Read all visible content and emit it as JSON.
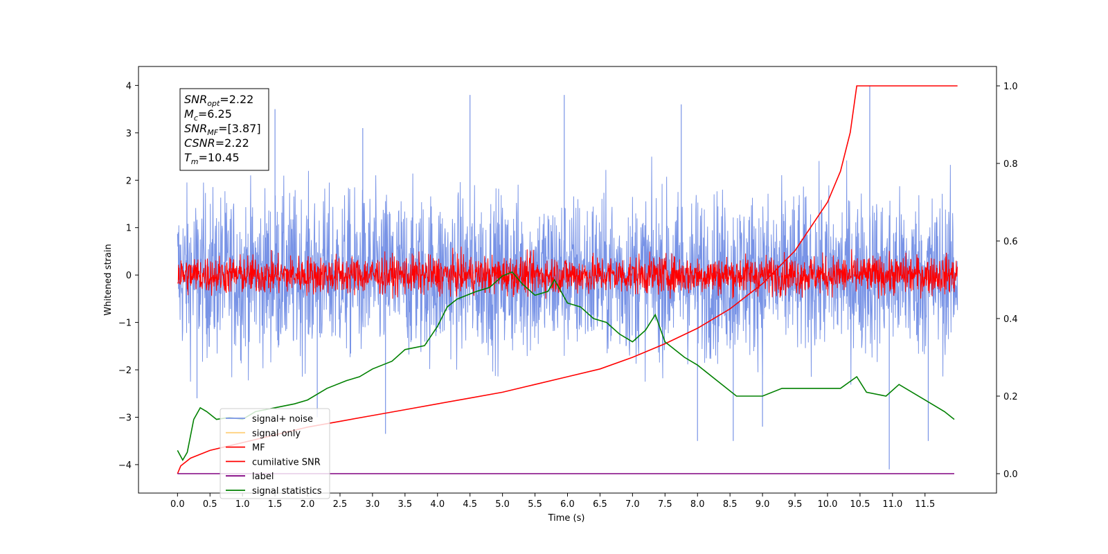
{
  "chart_data": {
    "type": "line",
    "xlabel": "Time (s)",
    "ylabel": "Whitened strain",
    "ylabel_right": "",
    "xlim": [
      -0.6,
      12.6
    ],
    "ylim": [
      -4.6,
      4.4
    ],
    "ylim_right": [
      -0.05,
      1.05
    ],
    "xticks": [
      0.0,
      0.5,
      1.0,
      1.5,
      2.0,
      2.5,
      3.0,
      3.5,
      4.0,
      4.5,
      5.0,
      5.5,
      6.0,
      6.5,
      7.0,
      7.5,
      8.0,
      8.5,
      9.0,
      9.5,
      10.0,
      10.5,
      11.0,
      11.5
    ],
    "xtick_labels": [
      "0.0",
      "0.5",
      "1.0",
      "1.5",
      "2.0",
      "2.5",
      "3.0",
      "3.5",
      "4.0",
      "4.5",
      "5.0",
      "5.5",
      "6.0",
      "6.5",
      "7.0",
      "7.5",
      "8.0",
      "8.5",
      "9.0",
      "9.5",
      "10.0",
      "10.5",
      "11.0",
      "11.5"
    ],
    "yticks": [
      4,
      3,
      2,
      1,
      0,
      -1,
      -2,
      -3,
      -4
    ],
    "ytick_labels": [
      "4",
      "3",
      "2",
      "1",
      "0",
      "−1",
      "−2",
      "−3",
      "−4"
    ],
    "yticks_right": [
      1.0,
      0.8,
      0.6,
      0.4,
      0.2,
      0.0
    ],
    "ytick_labels_right": [
      "1.0",
      "0.8",
      "0.6",
      "0.4",
      "0.2",
      "0.0"
    ],
    "grid": false,
    "legend_position": "lower-left",
    "annotation": [
      {
        "base": "SNR",
        "sub": "opt",
        "value": "=2.22"
      },
      {
        "base": "M",
        "sub": "c",
        "value": "=6.25"
      },
      {
        "base": "SNR",
        "sub": "MF",
        "value": "=[3.87]"
      },
      {
        "base": "CSNR",
        "sub": "",
        "value": "=2.22"
      },
      {
        "base": "T",
        "sub": "m",
        "value": "=10.45"
      }
    ],
    "series": [
      {
        "name": "signal+ noise",
        "axis": "left",
        "style": "noise",
        "color": "#7893e6",
        "description_values": {
          "x_start": 0.0,
          "x_end": 12.0,
          "typical_upper": 2.0,
          "typical_lower": -2.0,
          "max_spike": 4.0,
          "min_spike": -4.1
        },
        "spikes": [
          {
            "x": 4.5,
            "y": 3.8
          },
          {
            "x": 5.95,
            "y": 3.8
          },
          {
            "x": 7.75,
            "y": 3.6
          },
          {
            "x": 10.65,
            "y": 4.0
          },
          {
            "x": 1.5,
            "y": 3.5
          },
          {
            "x": 2.85,
            "y": 3.1
          },
          {
            "x": 0.3,
            "y": -2.6
          },
          {
            "x": 2.15,
            "y": -3.0
          },
          {
            "x": 3.2,
            "y": -3.35
          },
          {
            "x": 8.0,
            "y": -3.5
          },
          {
            "x": 8.55,
            "y": -3.5
          },
          {
            "x": 9.0,
            "y": -3.2
          },
          {
            "x": 10.95,
            "y": -4.1
          },
          {
            "x": 11.55,
            "y": -3.5
          }
        ]
      },
      {
        "name": "signal only",
        "axis": "left",
        "style": "line",
        "color": "#ffd27f",
        "x": [],
        "y": []
      },
      {
        "name": "MF",
        "axis": "left",
        "style": "noise",
        "color": "#ff0000",
        "description_values": {
          "x_start": 0.0,
          "x_end": 12.0,
          "typical_upper": 0.45,
          "typical_lower": -0.45,
          "max_spike": 0.8,
          "min_spike": -0.5
        }
      },
      {
        "name": "cumilative SNR",
        "axis": "right",
        "style": "line",
        "color": "#ff0000",
        "x": [
          0.0,
          0.05,
          0.2,
          0.5,
          1.0,
          1.5,
          2.0,
          2.5,
          3.0,
          3.5,
          4.0,
          4.5,
          5.0,
          5.5,
          6.0,
          6.5,
          7.0,
          7.5,
          8.0,
          8.5,
          9.0,
          9.5,
          10.0,
          10.2,
          10.35,
          10.45,
          10.5,
          11.0,
          11.5,
          12.0
        ],
        "y": [
          0.0,
          0.02,
          0.04,
          0.06,
          0.08,
          0.1,
          0.12,
          0.135,
          0.15,
          0.165,
          0.18,
          0.195,
          0.21,
          0.23,
          0.25,
          0.27,
          0.3,
          0.335,
          0.375,
          0.425,
          0.49,
          0.575,
          0.7,
          0.78,
          0.88,
          1.0,
          1.0,
          1.0,
          1.0,
          1.0
        ]
      },
      {
        "name": "label",
        "axis": "right",
        "style": "line",
        "color": "#800080",
        "x": [
          0.0,
          11.95
        ],
        "y": [
          0.0,
          0.0
        ]
      },
      {
        "name": "signal statistics",
        "axis": "right",
        "style": "line",
        "color": "#008000",
        "x": [
          0.0,
          0.08,
          0.15,
          0.25,
          0.35,
          0.45,
          0.6,
          0.8,
          1.0,
          1.2,
          1.5,
          1.8,
          2.0,
          2.3,
          2.6,
          2.8,
          3.0,
          3.3,
          3.5,
          3.8,
          4.0,
          4.15,
          4.3,
          4.6,
          4.8,
          5.0,
          5.15,
          5.3,
          5.5,
          5.7,
          5.8,
          6.0,
          6.2,
          6.4,
          6.6,
          6.8,
          7.0,
          7.2,
          7.35,
          7.5,
          7.8,
          8.0,
          8.3,
          8.6,
          9.0,
          9.3,
          9.6,
          10.0,
          10.2,
          10.45,
          10.6,
          10.9,
          11.1,
          11.5,
          11.8,
          11.95
        ],
        "y": [
          0.06,
          0.035,
          0.055,
          0.14,
          0.17,
          0.16,
          0.14,
          0.145,
          0.14,
          0.16,
          0.17,
          0.18,
          0.19,
          0.22,
          0.24,
          0.25,
          0.27,
          0.29,
          0.32,
          0.33,
          0.38,
          0.43,
          0.45,
          0.47,
          0.48,
          0.51,
          0.52,
          0.49,
          0.46,
          0.47,
          0.5,
          0.44,
          0.43,
          0.4,
          0.39,
          0.36,
          0.34,
          0.37,
          0.41,
          0.34,
          0.3,
          0.28,
          0.24,
          0.2,
          0.2,
          0.22,
          0.22,
          0.22,
          0.22,
          0.25,
          0.21,
          0.2,
          0.23,
          0.19,
          0.16,
          0.14
        ]
      }
    ]
  }
}
